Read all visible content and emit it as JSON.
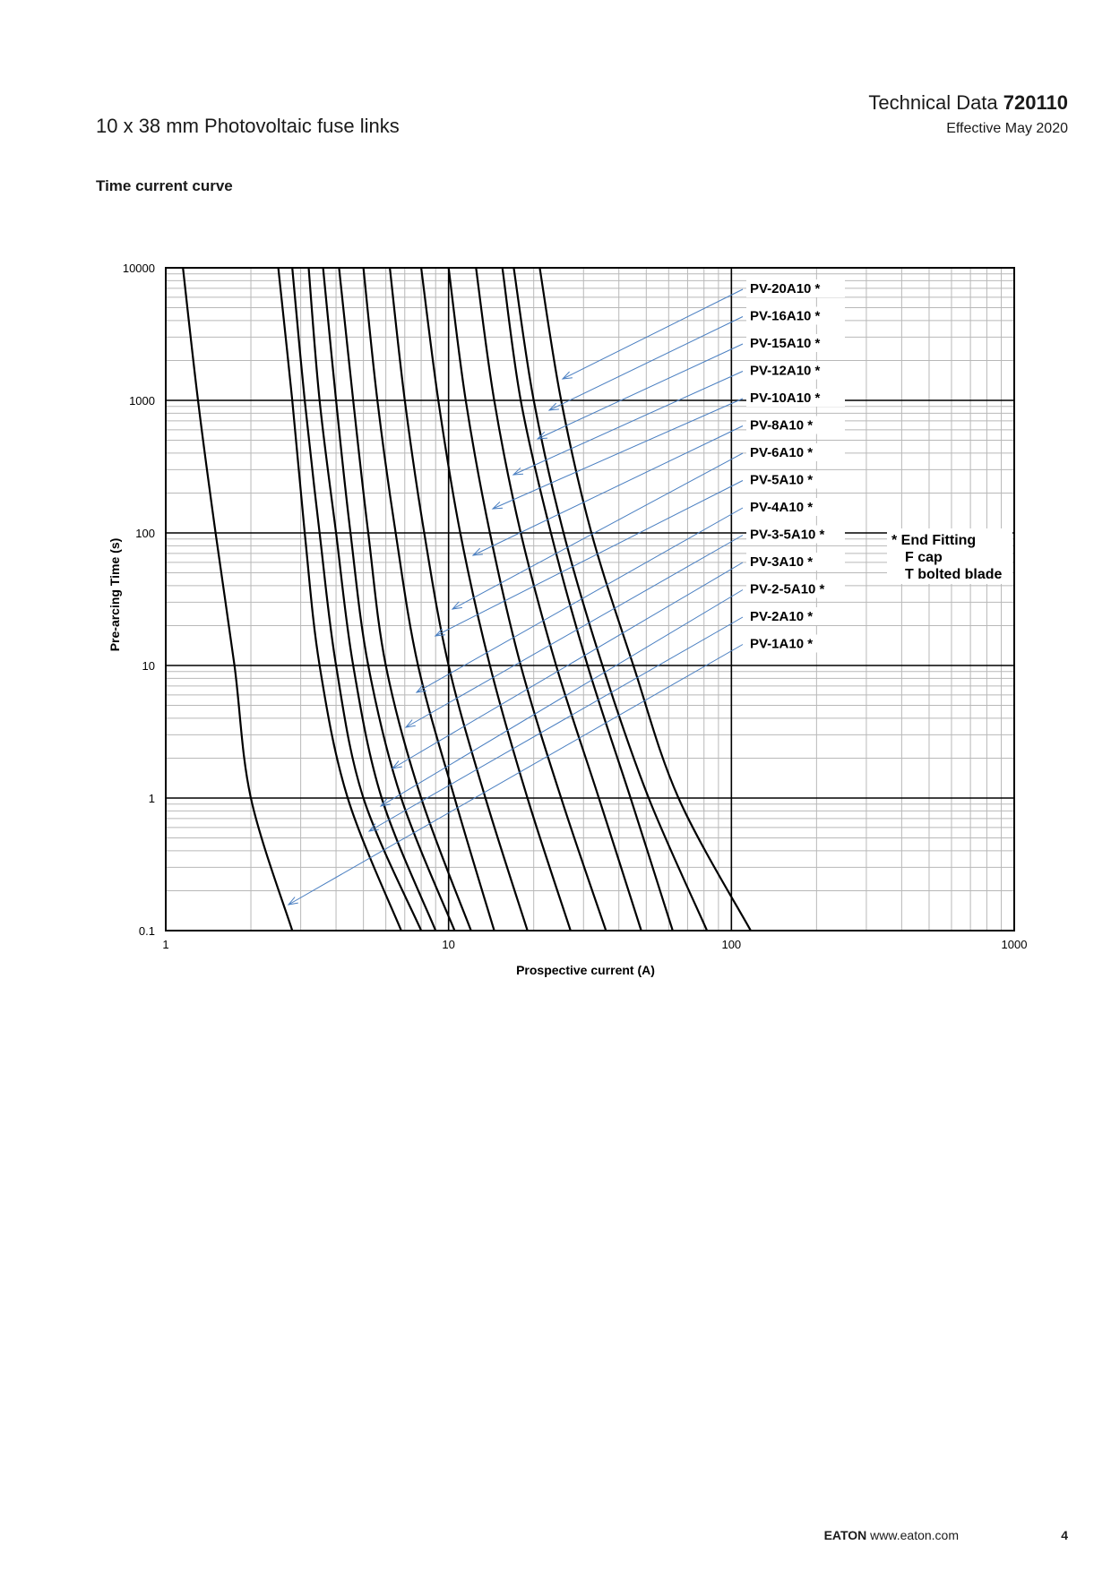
{
  "header": {
    "document_title": "10 x 38 mm Photovoltaic fuse links",
    "technical_data_label": "Technical Data",
    "technical_data_number": "720110",
    "effective_date": "Effective May 2020"
  },
  "section_title": "Time current curve",
  "footer": {
    "brand": "EATON",
    "website": "www.eaton.com",
    "page_number": "4"
  },
  "colors": {
    "curve": "#000000",
    "leader_line": "#4a7fc1",
    "grid_minor": "#b8b8b8",
    "grid_major": "#000000"
  },
  "chart_data": {
    "type": "line",
    "x_scale": "log",
    "y_scale": "log",
    "xlim": [
      1,
      1000
    ],
    "ylim": [
      0.1,
      10000
    ],
    "xlabel": "Prospective current (A)",
    "ylabel": "Pre-arcing Time (s)",
    "x_ticks": [
      "1",
      "10",
      "100",
      "1000"
    ],
    "y_ticks": [
      "0.1",
      "1",
      "10",
      "100",
      "1000",
      "10000"
    ],
    "grid": true,
    "legend_note": [
      "* End Fitting",
      "F cap",
      "T bolted blade"
    ],
    "series": [
      {
        "name": "PV-1A10 *",
        "points": [
          [
            1.15,
            10000
          ],
          [
            1.3,
            1000
          ],
          [
            1.5,
            100
          ],
          [
            1.75,
            10
          ],
          [
            2.0,
            1
          ],
          [
            2.8,
            0.1
          ]
        ]
      },
      {
        "name": "PV-2A10 *",
        "points": [
          [
            2.5,
            10000
          ],
          [
            2.8,
            1000
          ],
          [
            3.1,
            100
          ],
          [
            3.5,
            10
          ],
          [
            4.4,
            1
          ],
          [
            6.8,
            0.1
          ]
        ]
      },
      {
        "name": "PV-2-5A10 *",
        "points": [
          [
            2.8,
            10000
          ],
          [
            3.1,
            1000
          ],
          [
            3.5,
            100
          ],
          [
            4.0,
            10
          ],
          [
            5.0,
            1
          ],
          [
            8.0,
            0.1
          ]
        ]
      },
      {
        "name": "PV-3A10 *",
        "points": [
          [
            3.2,
            10000
          ],
          [
            3.5,
            1000
          ],
          [
            4.0,
            100
          ],
          [
            4.6,
            10
          ],
          [
            5.8,
            1
          ],
          [
            9.0,
            0.1
          ]
        ]
      },
      {
        "name": "PV-3-5A10 *",
        "points": [
          [
            3.6,
            10000
          ],
          [
            4.0,
            1000
          ],
          [
            4.5,
            100
          ],
          [
            5.2,
            10
          ],
          [
            6.8,
            1
          ],
          [
            10.5,
            0.1
          ]
        ]
      },
      {
        "name": "PV-4A10 *",
        "points": [
          [
            4.1,
            10000
          ],
          [
            4.6,
            1000
          ],
          [
            5.2,
            100
          ],
          [
            6.0,
            10
          ],
          [
            8.0,
            1
          ],
          [
            12.0,
            0.1
          ]
        ]
      },
      {
        "name": "PV-5A10 *",
        "points": [
          [
            5.0,
            10000
          ],
          [
            5.6,
            1000
          ],
          [
            6.5,
            100
          ],
          [
            7.8,
            10
          ],
          [
            10.5,
            1
          ],
          [
            14.5,
            0.1
          ]
        ]
      },
      {
        "name": "PV-6A10 *",
        "points": [
          [
            6.2,
            10000
          ],
          [
            7.0,
            1000
          ],
          [
            8.2,
            100
          ],
          [
            10.0,
            10
          ],
          [
            13.5,
            1
          ],
          [
            19.0,
            0.1
          ]
        ]
      },
      {
        "name": "PV-8A10 *",
        "points": [
          [
            8.0,
            10000
          ],
          [
            9.2,
            1000
          ],
          [
            11.0,
            100
          ],
          [
            14.0,
            10
          ],
          [
            19.0,
            1
          ],
          [
            27.0,
            0.1
          ]
        ]
      },
      {
        "name": "PV-10A10 *",
        "points": [
          [
            10.0,
            10000
          ],
          [
            11.5,
            1000
          ],
          [
            14.0,
            100
          ],
          [
            18.0,
            10
          ],
          [
            25.0,
            1
          ],
          [
            36.0,
            0.1
          ]
        ]
      },
      {
        "name": "PV-12A10 *",
        "points": [
          [
            12.5,
            10000
          ],
          [
            14.5,
            1000
          ],
          [
            18.0,
            100
          ],
          [
            24.0,
            10
          ],
          [
            34.0,
            1
          ],
          [
            48.0,
            0.1
          ]
        ]
      },
      {
        "name": "PV-15A10 *",
        "points": [
          [
            15.5,
            10000
          ],
          [
            18.0,
            1000
          ],
          [
            23.0,
            100
          ],
          [
            31.0,
            10
          ],
          [
            44.0,
            1
          ],
          [
            62.0,
            0.1
          ]
        ]
      },
      {
        "name": "PV-16A10 *",
        "points": [
          [
            17.0,
            10000
          ],
          [
            20.0,
            1000
          ],
          [
            25.5,
            100
          ],
          [
            35.0,
            10
          ],
          [
            51.0,
            1
          ],
          [
            82.0,
            0.1
          ]
        ]
      },
      {
        "name": "PV-20A10 *",
        "points": [
          [
            21.0,
            10000
          ],
          [
            25.0,
            1000
          ],
          [
            32.0,
            100
          ],
          [
            45.0,
            10
          ],
          [
            65.0,
            1
          ],
          [
            117.0,
            0.1
          ]
        ]
      }
    ]
  }
}
